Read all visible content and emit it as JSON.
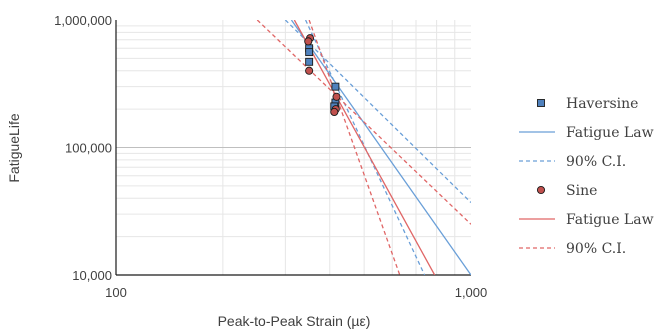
{
  "chart_data": {
    "type": "scatter",
    "xlabel": "Peak-to-Peak Strain  (µε)",
    "ylabel": "FatigueLife",
    "x_scale": "log",
    "y_scale": "log",
    "xlim": [
      100,
      1000
    ],
    "ylim": [
      10000,
      1000000
    ],
    "x_ticks": [
      {
        "value": 100,
        "label": "100"
      },
      {
        "value": 1000,
        "label": "1,000"
      }
    ],
    "y_ticks": [
      {
        "value": 10000,
        "label": "10,000"
      },
      {
        "value": 100000,
        "label": "100,000"
      },
      {
        "value": 1000000,
        "label": "1,000,000"
      }
    ],
    "grid": true,
    "legend_position": "right",
    "series": [
      {
        "name": "Haversine",
        "kind": "points",
        "marker": "square",
        "color": "#4f81bd",
        "points": [
          {
            "x": 350,
            "y": 600000
          },
          {
            "x": 350,
            "y": 560000
          },
          {
            "x": 350,
            "y": 470000
          },
          {
            "x": 415,
            "y": 300000
          },
          {
            "x": 415,
            "y": 225000
          },
          {
            "x": 412,
            "y": 210000
          }
        ]
      },
      {
        "name": "Fatigue Law",
        "kind": "line",
        "dash": "solid",
        "color": "#6a9fd8",
        "points": [
          {
            "x": 312,
            "y": 1000000
          },
          {
            "x": 1000,
            "y": 10000
          }
        ]
      },
      {
        "name": "90% C.I.",
        "kind": "line",
        "dash": "dashed",
        "color": "#6a9fd8",
        "lines": [
          [
            {
              "x": 300,
              "y": 1000000
            },
            {
              "x": 1000,
              "y": 37000
            }
          ],
          [
            {
              "x": 342,
              "y": 1000000
            },
            {
              "x": 740,
              "y": 10000
            }
          ]
        ]
      },
      {
        "name": "Sine",
        "kind": "points",
        "marker": "circle",
        "color": "#c0504d",
        "points": [
          {
            "x": 352,
            "y": 720000
          },
          {
            "x": 348,
            "y": 680000
          },
          {
            "x": 350,
            "y": 400000
          },
          {
            "x": 418,
            "y": 250000
          },
          {
            "x": 416,
            "y": 200000
          },
          {
            "x": 412,
            "y": 190000
          }
        ]
      },
      {
        "name": "Fatigue Law",
        "kind": "line",
        "dash": "solid",
        "color": "#e06666",
        "points": [
          {
            "x": 318,
            "y": 1000000
          },
          {
            "x": 790,
            "y": 10000
          }
        ]
      },
      {
        "name": "90% C.I.",
        "kind": "line",
        "dash": "dashed",
        "color": "#e06666",
        "lines": [
          [
            {
              "x": 250,
              "y": 1000000
            },
            {
              "x": 1000,
              "y": 25000
            }
          ],
          [
            {
              "x": 350,
              "y": 1000000
            },
            {
              "x": 630,
              "y": 10000
            }
          ]
        ]
      }
    ]
  }
}
